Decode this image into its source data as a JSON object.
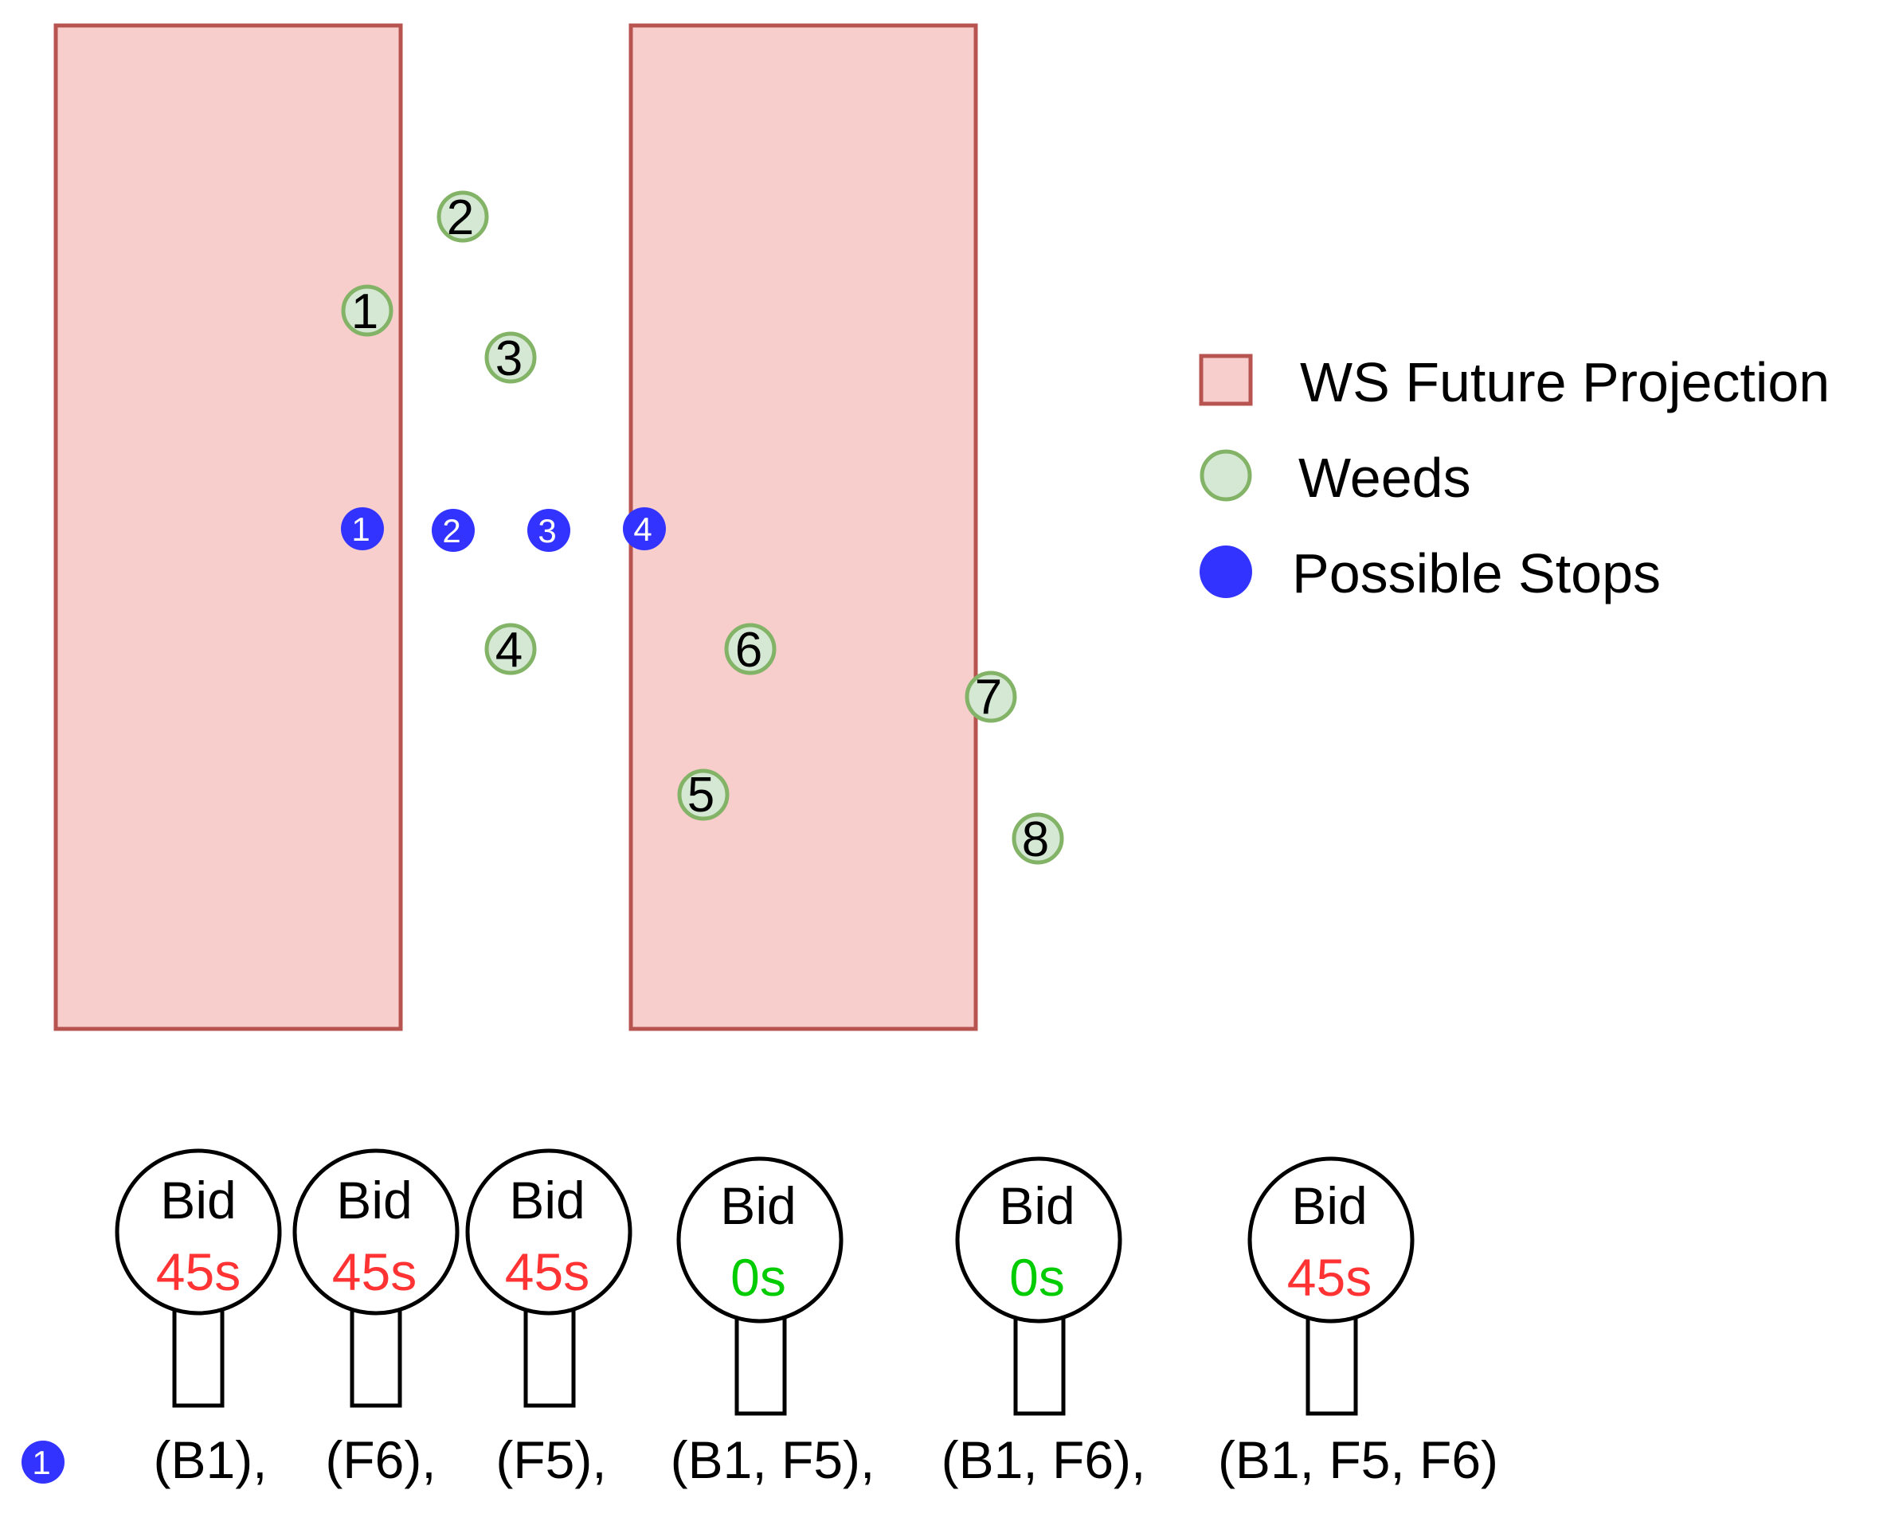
{
  "colors": {
    "projection_fill": "#f8cecc",
    "projection_stroke": "#b85450",
    "weed_fill": "#d5e8d4",
    "weed_stroke": "#82b366",
    "stop_fill": "#3333ff",
    "bid_high": "#ff3333",
    "bid_zero": "#00cc00",
    "text": "#000000"
  },
  "legend": {
    "projection": "WS Future Projection",
    "weeds": "Weeds",
    "stops": "Possible Stops"
  },
  "weeds": [
    "1",
    "2",
    "3",
    "4",
    "5",
    "6",
    "7",
    "8"
  ],
  "stops": [
    "1",
    "2",
    "3",
    "4"
  ],
  "bid_row": {
    "stop_label": "1",
    "bids": [
      {
        "title": "Bid",
        "time": "45s",
        "status": "high",
        "group": "(B1),"
      },
      {
        "title": "Bid",
        "time": "45s",
        "status": "high",
        "group": "(F6),"
      },
      {
        "title": "Bid",
        "time": "45s",
        "status": "high",
        "group": "(F5),"
      },
      {
        "title": "Bid",
        "time": "0s",
        "status": "zero",
        "group": "(B1, F5),"
      },
      {
        "title": "Bid",
        "time": "0s",
        "status": "zero",
        "group": "(B1, F6),"
      },
      {
        "title": "Bid",
        "time": "45s",
        "status": "high",
        "group": "(B1, F5, F6)"
      }
    ]
  }
}
